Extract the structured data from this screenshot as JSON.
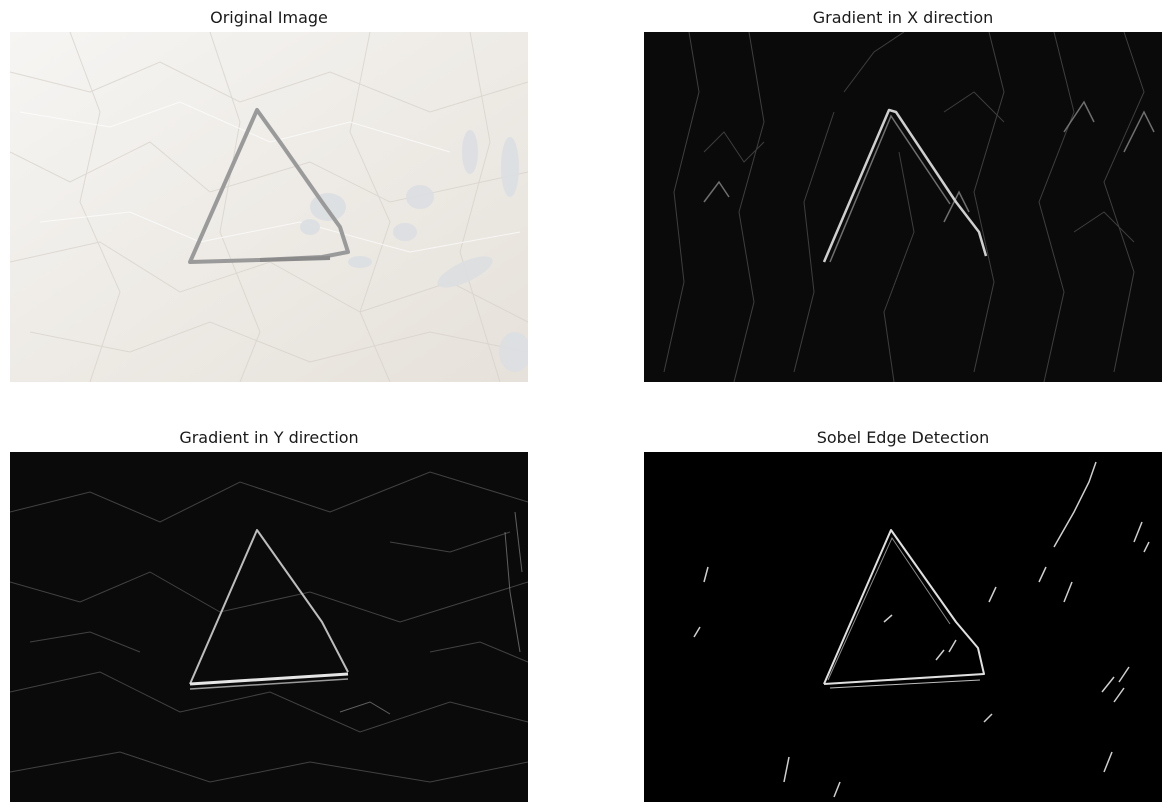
{
  "figure": {
    "panels": [
      {
        "title": "Original Image"
      },
      {
        "title": "Gradient in X direction"
      },
      {
        "title": "Gradient in Y direction"
      },
      {
        "title": "Sobel Edge Detection"
      }
    ]
  },
  "colors": {
    "paper": "#efebe6",
    "pencil_stroke": "#9a9a9a",
    "gradient_background": "#0a0a0a",
    "edge_background": "#000000",
    "edge_highlight": "#e0e0e0"
  }
}
